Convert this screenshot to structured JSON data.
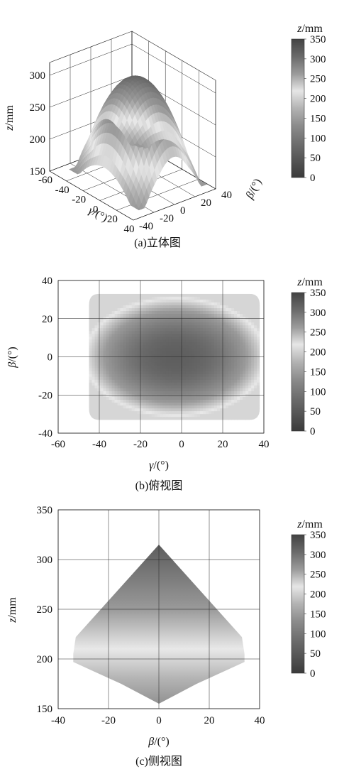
{
  "colorbar": {
    "label_var": "z",
    "label_unit": "/mm",
    "ticks": [
      0,
      50,
      100,
      150,
      200,
      250,
      300,
      350
    ],
    "colors": [
      "#3a3a3a",
      "#555555",
      "#6f6f6f",
      "#8c8c8c",
      "#b3b3b3",
      "#e6e6e6",
      "#9a9a9a",
      "#6a6a6a",
      "#434343"
    ]
  },
  "chart_data": [
    {
      "type": "surface3d",
      "caption": "(a)立体图",
      "xlabel_var": "γ",
      "xlabel_unit": "/(°)",
      "ylabel_var": "β",
      "ylabel_unit": "/(°)",
      "zlabel_var": "z",
      "zlabel_unit": "/mm",
      "x_ticks": [
        -60,
        -40,
        -20,
        0,
        20,
        40
      ],
      "y_ticks": [
        -40,
        -20,
        0,
        20,
        40
      ],
      "z_ticks": [
        150,
        200,
        250,
        300
      ],
      "xlim": [
        -60,
        40
      ],
      "ylim": [
        -40,
        40
      ],
      "zlim": [
        150,
        320
      ],
      "grid": true,
      "surface": {
        "gamma_range": [
          -45,
          38
        ],
        "beta_range": [
          -33,
          33
        ],
        "peak_gamma": -3,
        "peak_beta": 0,
        "peak_z": 315,
        "rim_z": 200,
        "min_z": 160
      }
    },
    {
      "type": "heatmap",
      "caption": "(b)俯视图",
      "xlabel_var": "γ",
      "xlabel_unit": "/(°)",
      "ylabel_var": "β",
      "ylabel_unit": "/(°)",
      "x_ticks": [
        -60,
        -40,
        -20,
        0,
        20,
        40
      ],
      "y_ticks": [
        -40,
        -20,
        0,
        20,
        40
      ],
      "xlim": [
        -60,
        40
      ],
      "ylim": [
        -40,
        40
      ],
      "grid": true,
      "region": {
        "gamma_range": [
          -45,
          38
        ],
        "beta_range": [
          -33,
          33
        ]
      }
    },
    {
      "type": "area",
      "caption": "(c)侧视图",
      "xlabel_var": "β",
      "xlabel_unit": "/(°)",
      "ylabel_var": "z",
      "ylabel_unit": "/mm",
      "x_ticks": [
        -40,
        -20,
        0,
        20,
        40
      ],
      "y_ticks": [
        150,
        200,
        250,
        300,
        350
      ],
      "xlim": [
        -40,
        40
      ],
      "ylim": [
        150,
        350
      ],
      "grid": true,
      "upper_envelope": {
        "x": [
          -34,
          -33,
          0,
          33,
          34
        ],
        "y": [
          205,
          222,
          315,
          222,
          205
        ]
      },
      "lower_envelope": {
        "x": [
          -34,
          -28,
          -15,
          0,
          15,
          28,
          34
        ],
        "y": [
          197,
          190,
          175,
          155,
          175,
          190,
          197
        ]
      }
    }
  ]
}
